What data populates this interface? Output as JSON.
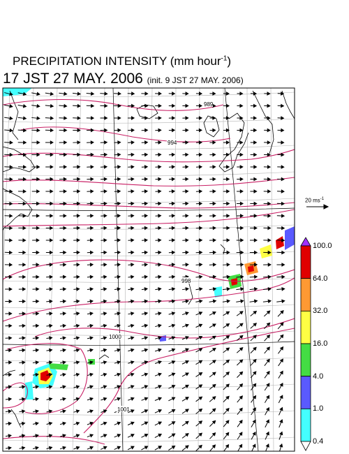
{
  "title": {
    "main": "PRECIPITATION INTENSITY (mm hour",
    "exponent": "-1",
    "close": ")"
  },
  "valid_time": "17 JST 27 MAY. 2006",
  "init_time": "(init. 9 JST 27 MAY. 2006)",
  "vector_scale": {
    "value": "20 ms",
    "exponent": "-1"
  },
  "isobars": [
    {
      "label": "989"
    },
    {
      "label": "994"
    },
    {
      "label": "998"
    },
    {
      "label": "1000"
    },
    {
      "label": "1001"
    }
  ],
  "colorbar": {
    "labels": [
      "100.0",
      "64.0",
      "32.0",
      "16.0",
      "4.0",
      "1.0",
      "0.4"
    ],
    "colors": [
      "#e00000",
      "#ff9933",
      "#ffff44",
      "#44dd44",
      "#5a5aff",
      "#44ffff"
    ],
    "over_color": "#a030ff",
    "under_color": "#ffffff"
  },
  "colors": {
    "isobar": "#c81e64",
    "grid": "#b4b4b4",
    "coast": "#000000"
  }
}
